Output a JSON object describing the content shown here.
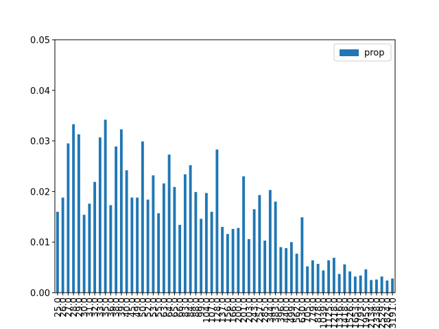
{
  "chart_data": {
    "type": "bar",
    "categories": [
      "25.0",
      "26.0",
      "27.0",
      "28.0",
      "29.0",
      "30.0",
      "31.0",
      "32.0",
      "33.0",
      "35.0",
      "36.0",
      "38.0",
      "39.0",
      "40.0",
      "45.0",
      "49.0",
      "50.0",
      "52.0",
      "53.0",
      "55.0",
      "63.0",
      "64.0",
      "65.0",
      "66.0",
      "83.0",
      "84.0",
      "88.0",
      "99.0",
      "104.0",
      "107.0",
      "128.0",
      "137.0",
      "156.0",
      "166.0",
      "200.0",
      "201.0",
      "203.0",
      "243.0",
      "257.0",
      "285.0",
      "344.0",
      "383.0",
      "396.0",
      "440.0",
      "499.0",
      "562.0",
      "630.0",
      "705.0",
      "779.0",
      "878.0",
      "1039.0",
      "1125.0",
      "1218.0",
      "1316.0",
      "1418.0",
      "1526.0",
      "1653.0",
      "1793.0",
      "1955.0",
      "2134.0",
      "2338.0",
      "2529.0",
      "2824.0",
      "3191.0"
    ],
    "series": [
      {
        "name": "prop",
        "color": "#1f77b4",
        "values": [
          0.016,
          0.0188,
          0.0295,
          0.0333,
          0.0313,
          0.0154,
          0.0176,
          0.0219,
          0.0307,
          0.0342,
          0.0173,
          0.0289,
          0.0323,
          0.0242,
          0.0188,
          0.0188,
          0.0299,
          0.0184,
          0.0232,
          0.0157,
          0.0216,
          0.0273,
          0.0209,
          0.0134,
          0.0234,
          0.0252,
          0.0199,
          0.0146,
          0.0197,
          0.016,
          0.0283,
          0.013,
          0.0116,
          0.0126,
          0.0128,
          0.023,
          0.0106,
          0.0165,
          0.0193,
          0.0103,
          0.0203,
          0.018,
          0.009,
          0.0088,
          0.01,
          0.0077,
          0.0149,
          0.0052,
          0.0064,
          0.0057,
          0.0044,
          0.0064,
          0.0069,
          0.0037,
          0.0056,
          0.0042,
          0.0032,
          0.0034,
          0.0046,
          0.0025,
          0.0026,
          0.0032,
          0.0024,
          0.0028
        ]
      }
    ],
    "ylim": [
      0,
      0.05
    ],
    "yticks": [
      {
        "value": 0,
        "label": "0.00"
      },
      {
        "value": 0.01,
        "label": "0.01"
      },
      {
        "value": 0.02,
        "label": "0.02"
      },
      {
        "value": 0.03,
        "label": "0.03"
      },
      {
        "value": 0.04,
        "label": "0.04"
      },
      {
        "value": 0.05,
        "label": "0.05"
      }
    ],
    "legend": "upper right"
  }
}
